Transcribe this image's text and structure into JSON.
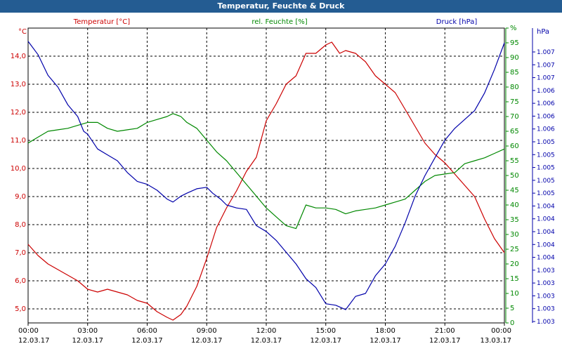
{
  "window": {
    "title": "Temperatur, Feuchte & Druck"
  },
  "colors": {
    "temperature": "#cc0000",
    "humidity": "#008800",
    "pressure": "#0000aa",
    "grid": "#000000",
    "title_bar": "#245c92"
  },
  "chart_data": {
    "type": "line",
    "title": "Temperatur, Feuchte & Druck",
    "grid": true,
    "x_axis": {
      "ticks": [
        {
          "hours": 0,
          "time": "00:00",
          "date": "12.03.17"
        },
        {
          "hours": 3,
          "time": "03:00",
          "date": "12.03.17"
        },
        {
          "hours": 6,
          "time": "06:00",
          "date": "12.03.17"
        },
        {
          "hours": 9,
          "time": "09:00",
          "date": "12.03.17"
        },
        {
          "hours": 12,
          "time": "12:00",
          "date": "12.03.17"
        },
        {
          "hours": 15,
          "time": "15:00",
          "date": "12.03.17"
        },
        {
          "hours": 18,
          "time": "18:00",
          "date": "12.03.17"
        },
        {
          "hours": 21,
          "time": "21:00",
          "date": "12.03.17"
        },
        {
          "hours": 24,
          "time": "00:00",
          "date": "13.03.17"
        }
      ],
      "range": [
        0,
        24
      ]
    },
    "axes": {
      "temperature": {
        "unit": "°C",
        "label": "Temperatur [°C]",
        "range": [
          4.5,
          15.0
        ],
        "ticks": [
          "5,0",
          "6,0",
          "7,0",
          "8,0",
          "9,0",
          "10,0",
          "11,0",
          "12,0",
          "13,0",
          "14,0"
        ],
        "tick_values": [
          5,
          6,
          7,
          8,
          9,
          10,
          11,
          12,
          13,
          14
        ]
      },
      "humidity": {
        "unit": "%",
        "label": "rel. Feuchte [%]",
        "range": [
          0,
          100
        ],
        "ticks": [
          "0",
          "5",
          "10",
          "15",
          "20",
          "25",
          "30",
          "35",
          "40",
          "45",
          "50",
          "55",
          "60",
          "65",
          "70",
          "75",
          "80",
          "85",
          "90",
          "95",
          "%"
        ],
        "tick_values": [
          0,
          5,
          10,
          15,
          20,
          25,
          30,
          35,
          40,
          45,
          50,
          55,
          60,
          65,
          70,
          75,
          80,
          85,
          90,
          95,
          100
        ]
      },
      "pressure": {
        "unit": "hPa",
        "label": "Druck [hPa]",
        "ticks": [
          "1.003",
          "1.003",
          "1.003",
          "1.003",
          "1.003",
          "1.004",
          "1.004",
          "1.004",
          "1.004",
          "1.004",
          "1.005",
          "1.005",
          "1.005",
          "1.005",
          "1.005",
          "1.006",
          "1.006",
          "1.006",
          "1.006",
          "1.007",
          "1.007",
          "1.007"
        ]
      }
    },
    "series": [
      {
        "name": "Temperatur [°C]",
        "axis": "temperature",
        "points": [
          [
            0,
            7.3
          ],
          [
            0.5,
            6.9
          ],
          [
            1,
            6.6
          ],
          [
            1.5,
            6.4
          ],
          [
            2,
            6.2
          ],
          [
            2.5,
            6.0
          ],
          [
            3,
            5.7
          ],
          [
            3.5,
            5.6
          ],
          [
            4,
            5.7
          ],
          [
            4.5,
            5.6
          ],
          [
            5,
            5.5
          ],
          [
            5.5,
            5.3
          ],
          [
            6,
            5.2
          ],
          [
            6.5,
            4.9
          ],
          [
            7,
            4.7
          ],
          [
            7.3,
            4.6
          ],
          [
            7.7,
            4.8
          ],
          [
            8,
            5.1
          ],
          [
            8.5,
            5.8
          ],
          [
            9,
            6.8
          ],
          [
            9.5,
            7.9
          ],
          [
            10,
            8.6
          ],
          [
            10.5,
            9.2
          ],
          [
            11,
            9.9
          ],
          [
            11.5,
            10.4
          ],
          [
            12,
            11.7
          ],
          [
            12.5,
            12.3
          ],
          [
            13,
            13.0
          ],
          [
            13.5,
            13.3
          ],
          [
            14,
            14.1
          ],
          [
            14.5,
            14.1
          ],
          [
            15,
            14.4
          ],
          [
            15.3,
            14.5
          ],
          [
            15.7,
            14.1
          ],
          [
            16,
            14.2
          ],
          [
            16.5,
            14.1
          ],
          [
            17,
            13.8
          ],
          [
            17.5,
            13.3
          ],
          [
            18,
            13.0
          ],
          [
            18.5,
            12.7
          ],
          [
            19,
            12.1
          ],
          [
            19.5,
            11.5
          ],
          [
            20,
            10.9
          ],
          [
            20.5,
            10.5
          ],
          [
            21,
            10.2
          ],
          [
            21.5,
            9.8
          ],
          [
            22,
            9.4
          ],
          [
            22.5,
            9.0
          ],
          [
            23,
            8.2
          ],
          [
            23.5,
            7.5
          ],
          [
            24,
            7.0
          ]
        ]
      },
      {
        "name": "rel. Feuchte [%]",
        "axis": "humidity",
        "points": [
          [
            0,
            61
          ],
          [
            0.5,
            63
          ],
          [
            1,
            65
          ],
          [
            1.5,
            65.5
          ],
          [
            2,
            66
          ],
          [
            2.5,
            67
          ],
          [
            3,
            68
          ],
          [
            3.5,
            68
          ],
          [
            4,
            66
          ],
          [
            4.5,
            65
          ],
          [
            5,
            65.5
          ],
          [
            5.5,
            66
          ],
          [
            6,
            68
          ],
          [
            6.5,
            69
          ],
          [
            7,
            70
          ],
          [
            7.3,
            71
          ],
          [
            7.7,
            70
          ],
          [
            8,
            68
          ],
          [
            8.5,
            66
          ],
          [
            9,
            62
          ],
          [
            9.5,
            58
          ],
          [
            10,
            55
          ],
          [
            10.5,
            51
          ],
          [
            11,
            47
          ],
          [
            11.5,
            43
          ],
          [
            12,
            39
          ],
          [
            12.5,
            36
          ],
          [
            13,
            33
          ],
          [
            13.5,
            32
          ],
          [
            14,
            40
          ],
          [
            14.5,
            39
          ],
          [
            15,
            39
          ],
          [
            15.5,
            38.5
          ],
          [
            16,
            37
          ],
          [
            16.5,
            38
          ],
          [
            17,
            38.5
          ],
          [
            17.5,
            39
          ],
          [
            18,
            40
          ],
          [
            18.5,
            41
          ],
          [
            19,
            42
          ],
          [
            19.5,
            45
          ],
          [
            20,
            48
          ],
          [
            20.5,
            50
          ],
          [
            21,
            50.5
          ],
          [
            21.5,
            51
          ],
          [
            22,
            54
          ],
          [
            22.5,
            55
          ],
          [
            23,
            56
          ],
          [
            23.5,
            57.5
          ],
          [
            24,
            59
          ]
        ]
      },
      {
        "name": "Druck [hPa]",
        "axis": "pressure",
        "points": [
          [
            0,
            95.5
          ],
          [
            0.5,
            91
          ],
          [
            1,
            84
          ],
          [
            1.5,
            80
          ],
          [
            2,
            74
          ],
          [
            2.5,
            70
          ],
          [
            2.8,
            65
          ],
          [
            3,
            64
          ],
          [
            3.5,
            59
          ],
          [
            4,
            57
          ],
          [
            4.5,
            55
          ],
          [
            5,
            51
          ],
          [
            5.5,
            48
          ],
          [
            6,
            47
          ],
          [
            6.5,
            45
          ],
          [
            7,
            42
          ],
          [
            7.3,
            41
          ],
          [
            7.7,
            43
          ],
          [
            8,
            44
          ],
          [
            8.5,
            45.5
          ],
          [
            9,
            46
          ],
          [
            9.3,
            44
          ],
          [
            9.7,
            42
          ],
          [
            10,
            40
          ],
          [
            10.5,
            39
          ],
          [
            11,
            38.5
          ],
          [
            11.5,
            33
          ],
          [
            12,
            31
          ],
          [
            12.5,
            28
          ],
          [
            13,
            24
          ],
          [
            13.5,
            20
          ],
          [
            14,
            15
          ],
          [
            14.5,
            12
          ],
          [
            15,
            6.5
          ],
          [
            15.5,
            6
          ],
          [
            16,
            4.5
          ],
          [
            16.5,
            9
          ],
          [
            17,
            10
          ],
          [
            17.5,
            16
          ],
          [
            18,
            20
          ],
          [
            18.5,
            26
          ],
          [
            19,
            34
          ],
          [
            19.5,
            43
          ],
          [
            20,
            50
          ],
          [
            20.5,
            56
          ],
          [
            21,
            62
          ],
          [
            21.5,
            66
          ],
          [
            22,
            69
          ],
          [
            22.5,
            72
          ],
          [
            23,
            78
          ],
          [
            23.5,
            86
          ],
          [
            24,
            95
          ]
        ]
      }
    ]
  }
}
